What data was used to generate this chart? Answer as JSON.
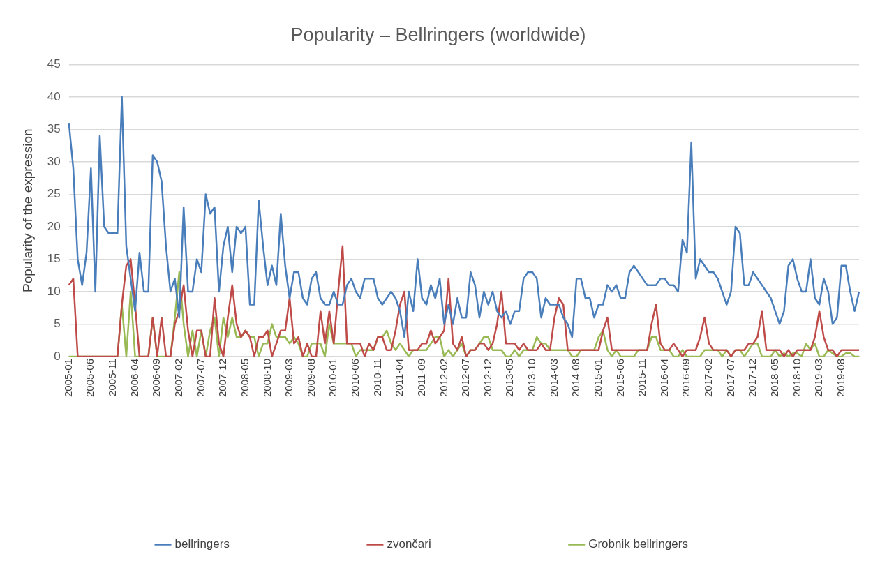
{
  "chart_data": {
    "type": "line",
    "title": "Popularity – Bellringers (worldwide)",
    "ylabel": "Popularity of the expression",
    "categories": [
      "2005-01",
      null,
      null,
      null,
      null,
      "2005-06",
      null,
      null,
      null,
      null,
      "2005-11",
      null,
      null,
      null,
      null,
      "2006-04",
      null,
      null,
      null,
      null,
      "2006-09",
      null,
      null,
      null,
      null,
      "2007-02",
      null,
      null,
      null,
      null,
      "2007-07",
      null,
      null,
      null,
      null,
      "2007-12",
      null,
      null,
      null,
      null,
      "2008-05",
      null,
      null,
      null,
      null,
      "2008-10",
      null,
      null,
      null,
      null,
      "2009-03",
      null,
      null,
      null,
      null,
      "2009-08",
      null,
      null,
      null,
      null,
      "2010-01",
      null,
      null,
      null,
      null,
      "2010-06",
      null,
      null,
      null,
      null,
      "2010-11",
      null,
      null,
      null,
      null,
      "2011-04",
      null,
      null,
      null,
      null,
      "2011-09",
      null,
      null,
      null,
      null,
      "2012-02",
      null,
      null,
      null,
      null,
      "2012-07",
      null,
      null,
      null,
      null,
      "2012-12",
      null,
      null,
      null,
      null,
      "2013-05",
      null,
      null,
      null,
      null,
      "2013-10",
      null,
      null,
      null,
      null,
      "2014-03",
      null,
      null,
      null,
      null,
      "2014-08",
      null,
      null,
      null,
      null,
      "2015-01",
      null,
      null,
      null,
      null,
      "2015-06",
      null,
      null,
      null,
      null,
      "2015-11",
      null,
      null,
      null,
      null,
      "2016-04",
      null,
      null,
      null,
      null,
      "2016-09",
      null,
      null,
      null,
      null,
      "2017-02",
      null,
      null,
      null,
      null,
      "2017-07",
      null,
      null,
      null,
      null,
      "2017-12",
      null,
      null,
      null,
      null,
      "2018-05",
      null,
      null,
      null,
      null,
      "2018-10",
      null,
      null,
      null,
      null,
      "2019-03",
      null,
      null,
      null,
      null,
      "2019-08",
      null,
      null,
      null,
      null
    ],
    "series": [
      {
        "name": "bellringers",
        "color": "#4a7ebb",
        "values": [
          36,
          29,
          15,
          11,
          16,
          29,
          10,
          34,
          20,
          19,
          19,
          19,
          40,
          17,
          12,
          7,
          16,
          10,
          10,
          31,
          30,
          27,
          17,
          10,
          12,
          6,
          23,
          10,
          10,
          15,
          13,
          25,
          22,
          23,
          10,
          17,
          20,
          13,
          20,
          19,
          20,
          8,
          8,
          24,
          17,
          11,
          14,
          11,
          22,
          14,
          9,
          13,
          13,
          9,
          8,
          12,
          13,
          9,
          8,
          8,
          10,
          8,
          8,
          11,
          12,
          10,
          9,
          12,
          12,
          12,
          9,
          8,
          9,
          10,
          9,
          7,
          3,
          10,
          7,
          15,
          9,
          8,
          11,
          9,
          12,
          5,
          8,
          5,
          9,
          6,
          6,
          13,
          11,
          6,
          10,
          8,
          10,
          7,
          6,
          7,
          5,
          7,
          7,
          12,
          13,
          13,
          12,
          6,
          9,
          8,
          8,
          8,
          6,
          5,
          3,
          12,
          12,
          9,
          9,
          6,
          8,
          8,
          11,
          10,
          11,
          9,
          9,
          13,
          14,
          13,
          12,
          11,
          11,
          11,
          12,
          12,
          11,
          11,
          10,
          18,
          16,
          33,
          12,
          15,
          14,
          13,
          13,
          12,
          10,
          8,
          10,
          20,
          19,
          11,
          11,
          13,
          12,
          11,
          10,
          9,
          7,
          5,
          7,
          14,
          15,
          12,
          10,
          10,
          15,
          9,
          8,
          12,
          10,
          5,
          6,
          14,
          14,
          10,
          7,
          10
        ]
      },
      {
        "name": "zvončari",
        "color": "#be4b48",
        "values": [
          11,
          12,
          0,
          0,
          0,
          0,
          0,
          0,
          0,
          0,
          0,
          0,
          8,
          14,
          15,
          8,
          0,
          0,
          0,
          6,
          0,
          6,
          0,
          0,
          5,
          7,
          11,
          4,
          0,
          4,
          4,
          0,
          0,
          9,
          2,
          0,
          6,
          11,
          5,
          3,
          4,
          3,
          0,
          3,
          3,
          4,
          0,
          2,
          4,
          4,
          9,
          2,
          3,
          0,
          2,
          0,
          0,
          7,
          2,
          7,
          2,
          10,
          17,
          2,
          2,
          2,
          2,
          0,
          2,
          1,
          3,
          3,
          1,
          1,
          4,
          8,
          10,
          1,
          1,
          1,
          2,
          2,
          4,
          2,
          3,
          4,
          12,
          2,
          1,
          3,
          0,
          1,
          1,
          2,
          2,
          1,
          2,
          5,
          10,
          2,
          2,
          2,
          1,
          2,
          1,
          1,
          1,
          2,
          1,
          1,
          6,
          9,
          8,
          1,
          1,
          1,
          1,
          1,
          1,
          1,
          1,
          4,
          6,
          1,
          1,
          1,
          1,
          1,
          1,
          1,
          1,
          1,
          5,
          8,
          2,
          1,
          1,
          2,
          1,
          0,
          1,
          1,
          1,
          3,
          6,
          2,
          1,
          1,
          1,
          1,
          0,
          1,
          1,
          1,
          2,
          2,
          3,
          7,
          1,
          1,
          1,
          1,
          0,
          1,
          0,
          1,
          1,
          1,
          1,
          3,
          7,
          3,
          1,
          1,
          0,
          1,
          1,
          1,
          1,
          1
        ]
      },
      {
        "name": "Grobnik bellringers",
        "color": "#98b954",
        "values": [
          0,
          0,
          0,
          0,
          0,
          0,
          0,
          0,
          0,
          0,
          0,
          0,
          8,
          0,
          10,
          0,
          0,
          0,
          0,
          6,
          0,
          0,
          0,
          0,
          6,
          13,
          5,
          0,
          4,
          0,
          4,
          0,
          4,
          6,
          0,
          6,
          3,
          6,
          3,
          3,
          4,
          3,
          3,
          0,
          2,
          2,
          5,
          3,
          3,
          3,
          2,
          3,
          2,
          0,
          0,
          2,
          2,
          2,
          0,
          5,
          2,
          2,
          2,
          2,
          2,
          0,
          1,
          1,
          1,
          1,
          3,
          3,
          4,
          2,
          1,
          2,
          1,
          0,
          1,
          1,
          1,
          1,
          2,
          3,
          3,
          0,
          1,
          0,
          1,
          2,
          0,
          1,
          1,
          2,
          3,
          3,
          1,
          1,
          1,
          0,
          0,
          1,
          0,
          1,
          1,
          1,
          3,
          2,
          2,
          1,
          1,
          1,
          1,
          1,
          0,
          0,
          1,
          1,
          1,
          1,
          3,
          4,
          1,
          0,
          1,
          0,
          0,
          0,
          0,
          1,
          1,
          1,
          3,
          3,
          1,
          1,
          1,
          0,
          0,
          1,
          0,
          0,
          0,
          0,
          1,
          1,
          1,
          1,
          0,
          1,
          0,
          1,
          1,
          0,
          1,
          2,
          2,
          0,
          0,
          0,
          1,
          0,
          0.5,
          0,
          0.5,
          0.5,
          0,
          2,
          1,
          2,
          0,
          0,
          1,
          0.5,
          0,
          0,
          0.5,
          0.5,
          0,
          0
        ]
      }
    ],
    "ylim": [
      0,
      45
    ],
    "yticks": [
      0,
      5,
      10,
      15,
      20,
      25,
      30,
      35,
      40,
      45
    ],
    "grid": "y",
    "legend": "bottom",
    "marker": "none",
    "line_style": "solid"
  }
}
